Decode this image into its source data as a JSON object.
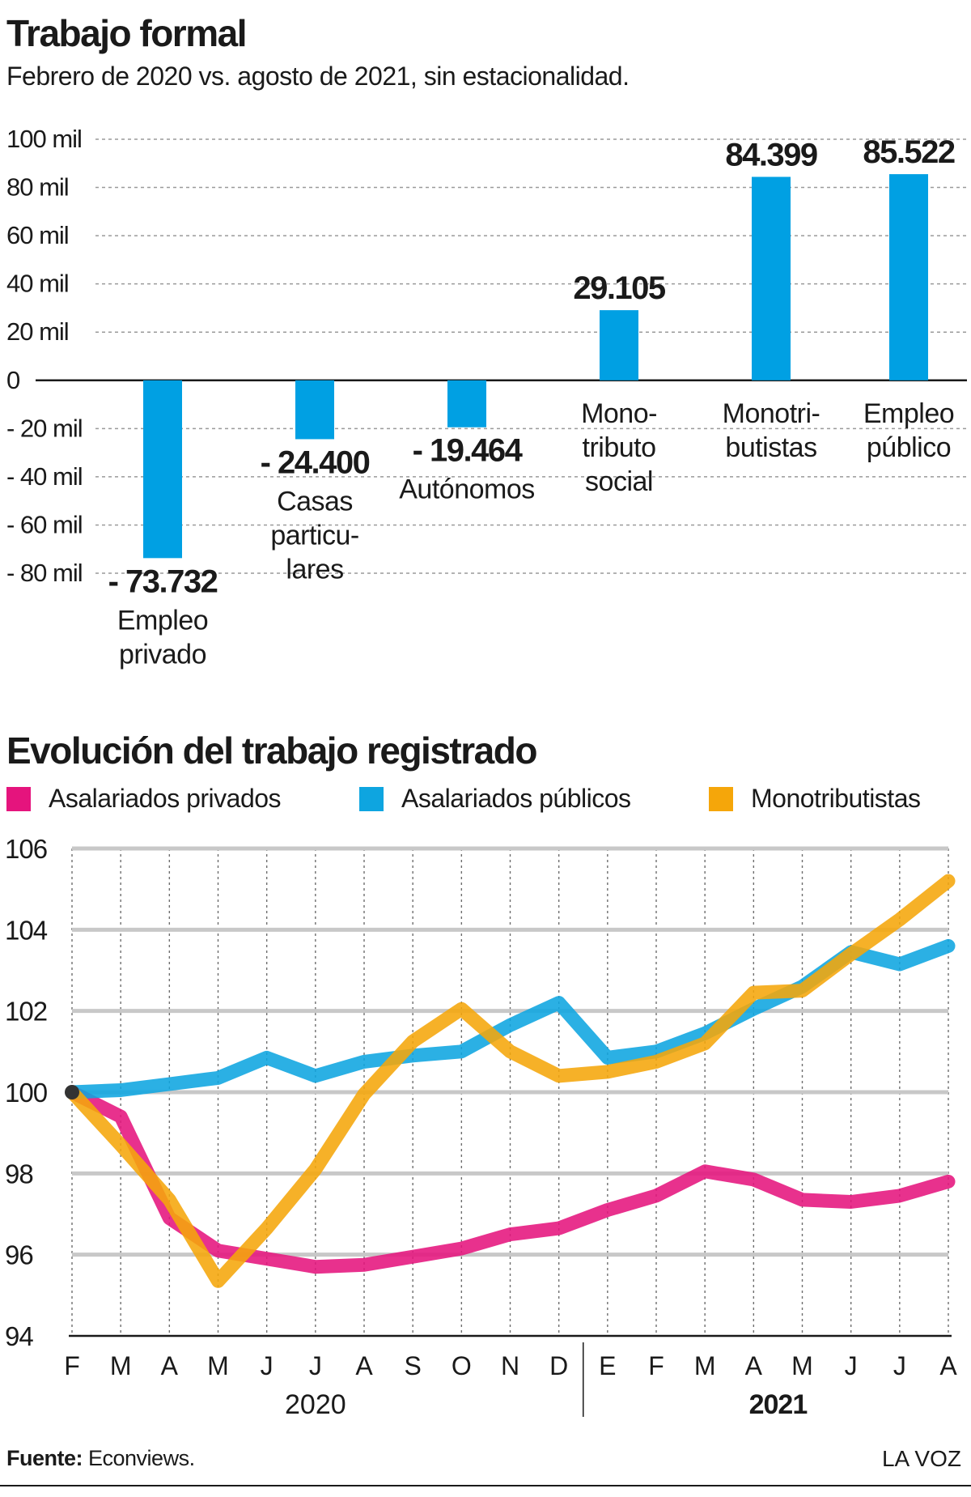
{
  "charts": {
    "top": {
      "title": "Trabajo formal",
      "subtitle": "Febrero de 2020 vs. agosto de 2021, sin estacionalidad."
    },
    "bottom": {
      "title": "Evolución del trabajo registrado"
    }
  },
  "chart_data": [
    {
      "type": "bar",
      "title": "Trabajo formal",
      "subtitle": "Febrero de 2020 vs. agosto de 2021, sin estacionalidad.",
      "ylim": [
        -80000,
        100000
      ],
      "yticks": [
        {
          "value": 100000,
          "label": "100 mil"
        },
        {
          "value": 80000,
          "label": "80 mil"
        },
        {
          "value": 60000,
          "label": "60 mil"
        },
        {
          "value": 40000,
          "label": "40 mil"
        },
        {
          "value": 20000,
          "label": "20 mil"
        },
        {
          "value": 0,
          "label": "0"
        },
        {
          "value": -20000,
          "label": "- 20 mil"
        },
        {
          "value": -40000,
          "label": "- 40 mil"
        },
        {
          "value": -60000,
          "label": "- 60 mil"
        },
        {
          "value": -80000,
          "label": "- 80 mil"
        }
      ],
      "grid": true,
      "bar_color": "#00a0e3",
      "bars": [
        {
          "category": "Empleo privado",
          "category_lines": [
            "Empleo",
            "privado"
          ],
          "value": -73732,
          "value_label": "- 73.732"
        },
        {
          "category": "Casas particulares",
          "category_lines": [
            "Casas",
            "particu-",
            "lares"
          ],
          "value": -24400,
          "value_label": "- 24.400"
        },
        {
          "category": "Autónomos",
          "category_lines": [
            "Autónomos"
          ],
          "value": -19464,
          "value_label": "- 19.464"
        },
        {
          "category": "Monotributo social",
          "category_lines": [
            "Mono-",
            "tributo",
            "social"
          ],
          "value": 29105,
          "value_label": "29.105"
        },
        {
          "category": "Monotributistas",
          "category_lines": [
            "Monotri-",
            "butistas"
          ],
          "value": 84399,
          "value_label": "84.399"
        },
        {
          "category": "Empleo público",
          "category_lines": [
            "Empleo",
            "público"
          ],
          "value": 85522,
          "value_label": "85.522"
        }
      ]
    },
    {
      "type": "line",
      "title": "Evolución del trabajo registrado",
      "ylim": [
        94,
        106
      ],
      "yticks": [
        106,
        104,
        102,
        100,
        98,
        96,
        94
      ],
      "grid": true,
      "legend_position": "top",
      "categories": [
        "F",
        "M",
        "A",
        "M",
        "J",
        "J",
        "A",
        "S",
        "O",
        "N",
        "D",
        "E",
        "F",
        "M",
        "A",
        "M",
        "J",
        "J",
        "A"
      ],
      "year_labels": [
        {
          "label": "2020",
          "from": 0,
          "to": 10,
          "bold": false
        },
        {
          "label": "2021",
          "from": 11,
          "to": 18,
          "bold": true
        }
      ],
      "series": [
        {
          "name": "Asalariados privados",
          "color": "#e5147d",
          "values": [
            100.0,
            99.4,
            96.9,
            96.1,
            95.9,
            95.7,
            95.75,
            95.95,
            96.15,
            96.5,
            96.65,
            97.1,
            97.45,
            98.05,
            97.85,
            97.35,
            97.3,
            97.45,
            97.8
          ]
        },
        {
          "name": "Asalariados públicos",
          "color": "#0ea5e0",
          "values": [
            100.0,
            100.05,
            100.2,
            100.35,
            100.85,
            100.4,
            100.75,
            100.9,
            101.0,
            101.65,
            102.2,
            100.85,
            101.0,
            101.45,
            102.05,
            102.6,
            103.45,
            103.15,
            103.6
          ]
        },
        {
          "name": "Monotributistas",
          "color": "#f5a60a",
          "values": [
            100.0,
            98.7,
            97.35,
            95.35,
            96.65,
            98.1,
            99.95,
            101.25,
            102.05,
            101.0,
            100.4,
            100.5,
            100.75,
            101.2,
            102.45,
            102.5,
            103.4,
            104.25,
            105.2
          ]
        }
      ]
    }
  ],
  "footer": {
    "source_label": "Fuente:",
    "source_name": "Econviews.",
    "brand": "LA VOZ"
  }
}
